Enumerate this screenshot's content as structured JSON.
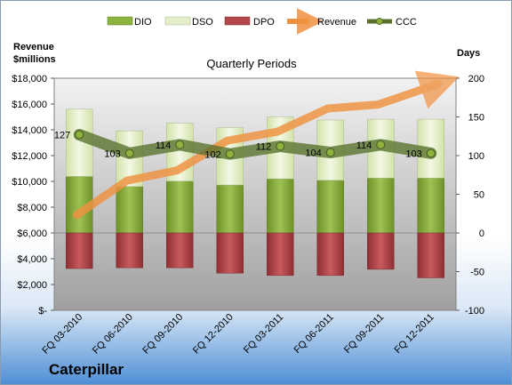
{
  "company": "Caterpillar",
  "chart_data": {
    "type": "bar",
    "title": "Quarterly Periods",
    "left_axis_label": [
      "Revenue",
      "$millions"
    ],
    "right_axis_label": "Days",
    "categories": [
      "FQ 03-2010",
      "FQ 06-2010",
      "FQ 09-2010",
      "FQ 12-2010",
      "FQ 03-2011",
      "FQ 06-2011",
      "FQ 09-2011",
      "FQ 12-2011"
    ],
    "left_ylim": [
      0,
      18000
    ],
    "left_ticks": [
      "$-",
      "$2,000",
      "$4,000",
      "$6,000",
      "$8,000",
      "$10,000",
      "$12,000",
      "$14,000",
      "$16,000",
      "$18,000"
    ],
    "right_ylim": [
      -100,
      200
    ],
    "right_ticks": [
      "-100",
      "-50",
      "0",
      "50",
      "100",
      "150",
      "200"
    ],
    "legend": [
      "DIO",
      "DSO",
      "DPO",
      "Revenue",
      "CCC"
    ],
    "colors": {
      "DIO": "#8db33f",
      "DSO": "#e4efc9",
      "DPO": "#b4474a",
      "Revenue": "#f0913f",
      "CCC": "#57712c",
      "plot_bg": "#a6a6a6"
    },
    "series": [
      {
        "name": "DIO",
        "axis": "right",
        "values": [
          73,
          60,
          67,
          62,
          70,
          68,
          71,
          71
        ]
      },
      {
        "name": "DSO",
        "axis": "right",
        "values": [
          87,
          72,
          75,
          74,
          80,
          78,
          76,
          76
        ]
      },
      {
        "name": "DPO",
        "axis": "right",
        "values": [
          -46,
          -45,
          -45,
          -52,
          -55,
          -55,
          -47,
          -58
        ]
      },
      {
        "name": "CCC",
        "axis": "right",
        "values": [
          127,
          103,
          114,
          102,
          112,
          104,
          114,
          103
        ],
        "labels": [
          "127",
          "103",
          "114",
          "102",
          "112",
          "104",
          "114",
          "103"
        ]
      },
      {
        "name": "Revenue",
        "axis": "left",
        "values": [
          8200,
          10400,
          11200,
          13500,
          14200,
          16000,
          16300,
          17000
        ]
      }
    ]
  }
}
